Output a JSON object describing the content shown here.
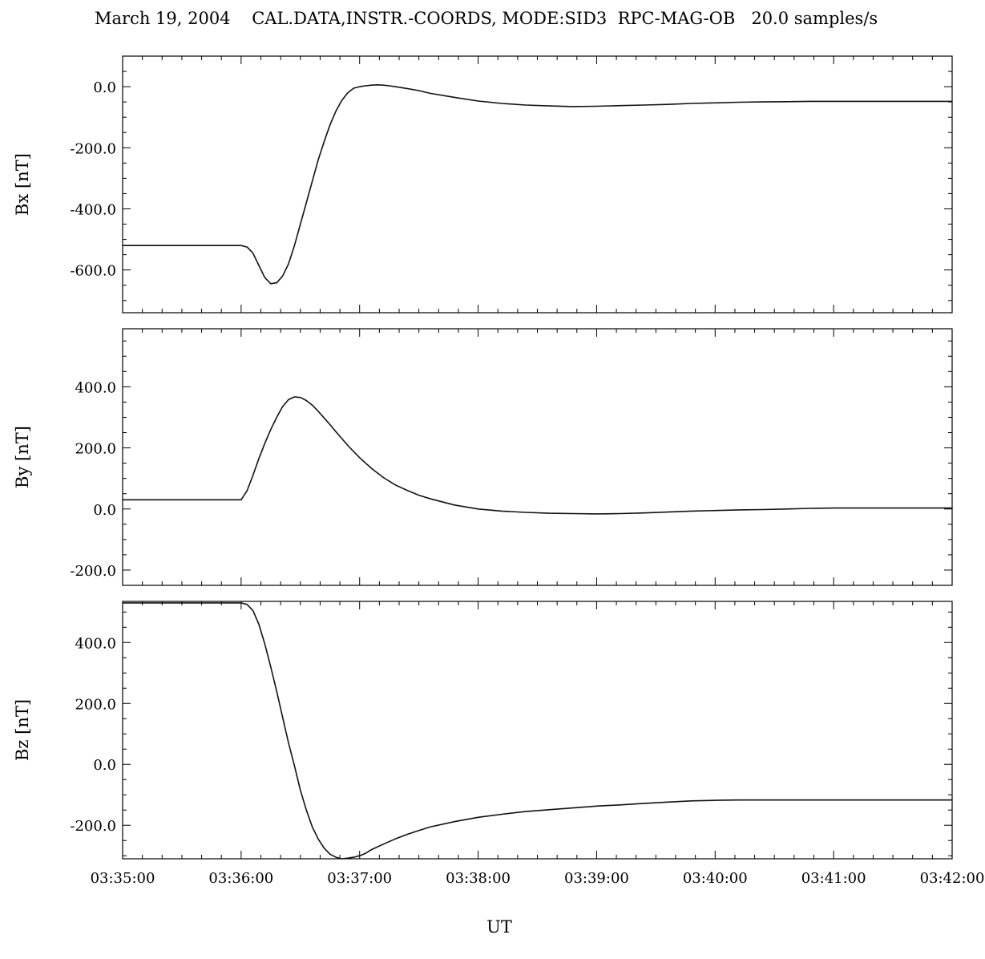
{
  "chart_data": {
    "type": "line",
    "title": "March 19, 2004    CAL.DATA,INSTR.-COORDS, MODE:SID3  RPC-MAG-OB   20.0 samples/s",
    "xlabel": "UT",
    "x_unit": "minutes after 03:35:00 UT",
    "xlim": [
      0,
      7
    ],
    "x_tick_values": [
      0,
      1,
      2,
      3,
      4,
      5,
      6,
      7
    ],
    "x_tick_labels": [
      "03:35:00",
      "03:36:00",
      "03:37:00",
      "03:38:00",
      "03:39:00",
      "03:40:00",
      "03:41:00",
      "03:42:00"
    ],
    "grid": false,
    "panels": [
      {
        "ylabel": "Bx  [nT]",
        "ylim": [
          -740,
          100
        ],
        "y_ticks": [
          0,
          -200,
          -400,
          -600
        ],
        "y_tick_labels": [
          "0.0",
          "-200.0",
          "-400.0",
          "-600.0"
        ],
        "series": [
          {
            "x": [
              0,
              0.5,
              1.0,
              1.05,
              1.1,
              1.15,
              1.2,
              1.25,
              1.3,
              1.35,
              1.4,
              1.45,
              1.5,
              1.55,
              1.6,
              1.65,
              1.7,
              1.75,
              1.8,
              1.85,
              1.9,
              1.95,
              2.0,
              2.05,
              2.1,
              2.15,
              2.2,
              2.25,
              2.3,
              2.4,
              2.5,
              2.6,
              2.8,
              3.0,
              3.2,
              3.4,
              3.6,
              3.8,
              4.0,
              4.2,
              4.4,
              4.6,
              4.8,
              5.0,
              5.2,
              5.4,
              5.6,
              5.8,
              6.0,
              6.2,
              6.4,
              6.6,
              6.8,
              7.0
            ],
            "values": [
              -520,
              -520,
              -520,
              -525,
              -545,
              -585,
              -625,
              -645,
              -642,
              -620,
              -580,
              -520,
              -450,
              -380,
              -310,
              -240,
              -180,
              -125,
              -80,
              -45,
              -20,
              -5,
              0,
              3,
              5,
              6,
              5,
              3,
              0,
              -6,
              -13,
              -22,
              -35,
              -47,
              -55,
              -60,
              -63,
              -65,
              -64,
              -62,
              -60,
              -58,
              -55,
              -53,
              -51,
              -50,
              -49,
              -48,
              -48,
              -48,
              -48,
              -48,
              -48,
              -48
            ]
          }
        ]
      },
      {
        "ylabel": "By  [nT]",
        "ylim": [
          -250,
          590
        ],
        "y_ticks": [
          400,
          200,
          0,
          -200
        ],
        "y_tick_labels": [
          "400.0",
          "200.0",
          "0.0",
          "-200.0"
        ],
        "series": [
          {
            "x": [
              0,
              0.5,
              1.0,
              1.05,
              1.1,
              1.15,
              1.2,
              1.25,
              1.3,
              1.35,
              1.4,
              1.45,
              1.5,
              1.55,
              1.6,
              1.65,
              1.7,
              1.75,
              1.8,
              1.9,
              2.0,
              2.1,
              2.2,
              2.3,
              2.4,
              2.5,
              2.6,
              2.8,
              3.0,
              3.2,
              3.4,
              3.6,
              3.8,
              4.0,
              4.2,
              4.4,
              4.6,
              4.8,
              5.0,
              5.2,
              5.4,
              5.6,
              5.8,
              6.0,
              6.2,
              6.4,
              6.6,
              6.8,
              7.0
            ],
            "values": [
              30,
              30,
              30,
              60,
              110,
              165,
              215,
              260,
              300,
              335,
              358,
              367,
              365,
              355,
              340,
              320,
              298,
              276,
              253,
              208,
              168,
              133,
              103,
              79,
              61,
              45,
              33,
              13,
              0,
              -7,
              -11,
              -14,
              -15,
              -16,
              -15,
              -13,
              -10,
              -7,
              -5,
              -3,
              -2,
              0,
              2,
              3,
              3,
              3,
              3,
              3,
              3
            ]
          }
        ]
      },
      {
        "ylabel": "Bz  [nT]",
        "ylim": [
          -310,
          535
        ],
        "y_ticks": [
          400,
          200,
          0,
          -200
        ],
        "y_tick_labels": [
          "400.0",
          "200.0",
          "0.0",
          "-200.0"
        ],
        "series": [
          {
            "x": [
              0,
              0.5,
              1.0,
              1.05,
              1.1,
              1.15,
              1.2,
              1.25,
              1.3,
              1.35,
              1.4,
              1.45,
              1.5,
              1.55,
              1.6,
              1.65,
              1.7,
              1.75,
              1.8,
              1.85,
              1.9,
              1.95,
              2.0,
              2.05,
              2.1,
              2.2,
              2.3,
              2.4,
              2.5,
              2.6,
              2.8,
              3.0,
              3.2,
              3.4,
              3.6,
              3.8,
              4.0,
              4.2,
              4.4,
              4.6,
              4.8,
              5.0,
              5.2,
              5.4,
              5.6,
              5.8,
              6.0,
              6.2,
              6.4,
              6.6,
              6.8,
              7.0
            ],
            "values": [
              530,
              530,
              530,
              525,
              505,
              460,
              395,
              320,
              240,
              155,
              70,
              -5,
              -85,
              -150,
              -205,
              -245,
              -275,
              -295,
              -305,
              -310,
              -308,
              -305,
              -300,
              -292,
              -280,
              -262,
              -245,
              -230,
              -217,
              -205,
              -188,
              -174,
              -164,
              -155,
              -149,
              -143,
              -137,
              -133,
              -128,
              -124,
              -120,
              -118,
              -117,
              -117,
              -117,
              -117,
              -117,
              -117,
              -117,
              -117,
              -117,
              -117
            ]
          }
        ]
      }
    ]
  }
}
